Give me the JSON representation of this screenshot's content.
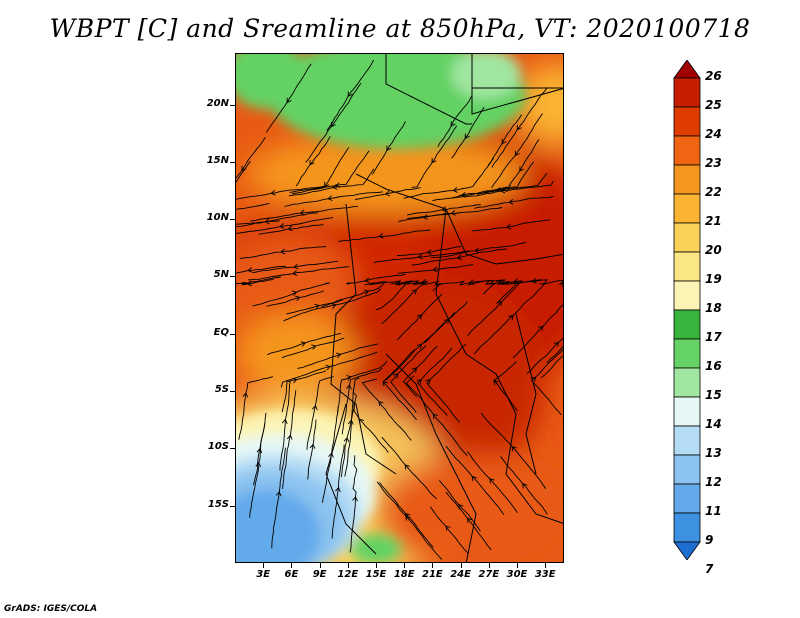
{
  "title": "WBPT [C] and Sreamline at 850hPa, VT: 2020100718",
  "footer": "GrADS: IGES/COLA",
  "map": {
    "variable": "Wet-bulb potential temperature",
    "level": "850hPa",
    "lat_range": [
      -20,
      24.5
    ],
    "lon_range": [
      0,
      35
    ],
    "lat_ticks": [
      "20N",
      "15N",
      "10N",
      "5N",
      "EQ",
      "5S",
      "10S",
      "15S"
    ],
    "lat_values": [
      20,
      15,
      10,
      5,
      0,
      -5,
      -10,
      -15
    ],
    "lon_ticks": [
      "3E",
      "6E",
      "9E",
      "12E",
      "15E",
      "18E",
      "21E",
      "24E",
      "27E",
      "30E",
      "33E"
    ],
    "lon_values": [
      3,
      6,
      9,
      12,
      15,
      18,
      21,
      24,
      27,
      30,
      33
    ]
  },
  "colorbar": {
    "labels": [
      "26",
      "25",
      "24",
      "23",
      "22",
      "21",
      "20",
      "19",
      "18",
      "17",
      "16",
      "15",
      "14",
      "13",
      "12",
      "11",
      "9",
      "7"
    ],
    "colors": [
      "#a00000",
      "#c81e00",
      "#e13c00",
      "#f06414",
      "#f5961e",
      "#fab432",
      "#fad25a",
      "#fae682",
      "#fcf4b4",
      "#37b43c",
      "#64d264",
      "#a0e6a0",
      "#e6f8f5",
      "#b4dcf5",
      "#8cc3f0",
      "#64aaeb",
      "#3c91e1",
      "#1e6ed2"
    ]
  }
}
